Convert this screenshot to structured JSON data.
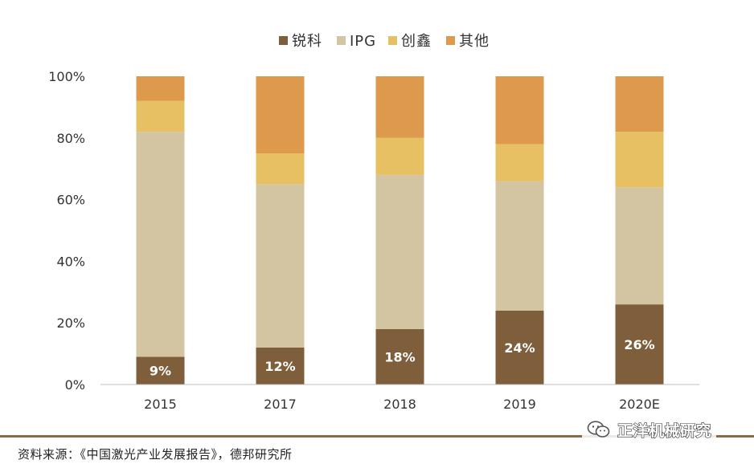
{
  "chart_data": {
    "type": "bar",
    "stacked": true,
    "normalized": true,
    "categories": [
      "2015",
      "2017",
      "2018",
      "2019",
      "2020E"
    ],
    "series": [
      {
        "name": "锐科",
        "color": "#7f5f3b",
        "values": [
          9,
          12,
          18,
          24,
          26
        ],
        "labels": [
          "9%",
          "12%",
          "18%",
          "24%",
          "26%"
        ]
      },
      {
        "name": "IPG",
        "color": "#d3c4a2",
        "values": [
          73,
          53,
          50,
          42,
          38
        ]
      },
      {
        "name": "创鑫",
        "color": "#e7c064",
        "values": [
          10,
          10,
          12,
          12,
          18
        ]
      },
      {
        "name": "其他",
        "color": "#dd9a4c",
        "values": [
          8,
          25,
          20,
          22,
          18
        ]
      }
    ],
    "yticks": [
      "0%",
      "20%",
      "40%",
      "60%",
      "80%",
      "100%"
    ],
    "ylim": [
      0,
      100
    ],
    "legend_position": "top-center",
    "grid": false
  },
  "footer": {
    "source": "资料来源：《中国激光产业发展报告》，德邦研究所"
  },
  "watermark": {
    "icon": "wechat-icon",
    "text": "正洋机械研究"
  }
}
